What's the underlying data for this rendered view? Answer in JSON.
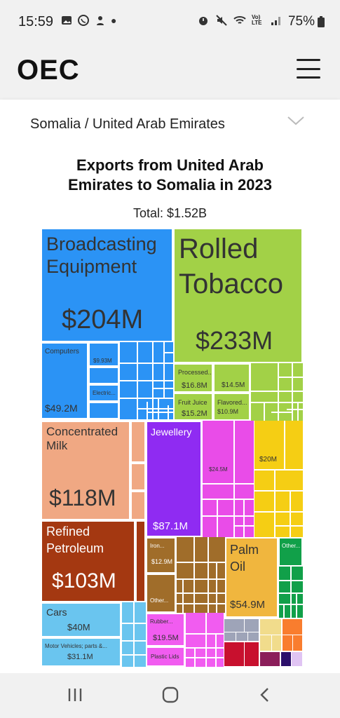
{
  "status_bar": {
    "time": "15:59",
    "battery": "75%",
    "lte": "Vo) LTE"
  },
  "app": {
    "logo": "OEC"
  },
  "selector": {
    "label": "Somalia / United Arab Emirates"
  },
  "page": {
    "title_line1": "Exports from United Arab",
    "title_line2": "Emirates to Somalia in 2023",
    "total": "Total: $1.52B"
  },
  "treemap": {
    "broadcasting": {
      "name_line1": "Broadcasting",
      "name_line2": "Equipment",
      "value": "$204M",
      "color": "#2b93f5"
    },
    "computers": {
      "name": "Computers",
      "value": "$49.2M"
    },
    "small1": {
      "value": "$9.93M"
    },
    "electric": {
      "name": "Electric..."
    },
    "tobacco": {
      "name_line1": "Rolled",
      "name_line2": "Tobacco",
      "value": "$233M",
      "color": "#a2d147"
    },
    "processed": {
      "name": "Processed...",
      "value": "$16.8M"
    },
    "green2": {
      "value": "$14.5M"
    },
    "fruit": {
      "name": "Fruit Juice",
      "value": "$15.2M"
    },
    "flavored": {
      "name": "Flavored...",
      "value": "$10.9M"
    },
    "milk": {
      "name_line1": "Concentrated",
      "name_line2": "Milk",
      "value": "$118M",
      "color": "#f0a883"
    },
    "jewellery": {
      "name": "Jewellery",
      "value": "$87.1M",
      "color": "#8f2bf2"
    },
    "pink": {
      "value": "$24.5M"
    },
    "yellow": {
      "value": "$20M"
    },
    "petroleum": {
      "name_line1": "Refined",
      "name_line2": "Petroleum",
      "value": "$103M",
      "color": "#a43811"
    },
    "iron": {
      "name": "Iron...",
      "value": "$12.9M"
    },
    "other_brown": {
      "name": "Other..."
    },
    "palm": {
      "name_line1": "Palm",
      "name_line2": "Oil",
      "value": "$54.9M",
      "color": "#f0b63e"
    },
    "other_green": {
      "name": "Other..."
    },
    "cars": {
      "name": "Cars",
      "value": "$40M"
    },
    "motor": {
      "name": "Motor Vehicles; parts &...",
      "value": "$31.1M"
    },
    "rubber": {
      "name": "Rubber...",
      "value": "$19.5M"
    },
    "plastic": {
      "name": "Plastic Lids"
    }
  },
  "icons": {
    "menu": "hamburger-icon",
    "chevron": "chevron-down-icon",
    "nav_recent": "recents-icon",
    "nav_home": "home-icon",
    "nav_back": "back-icon"
  }
}
